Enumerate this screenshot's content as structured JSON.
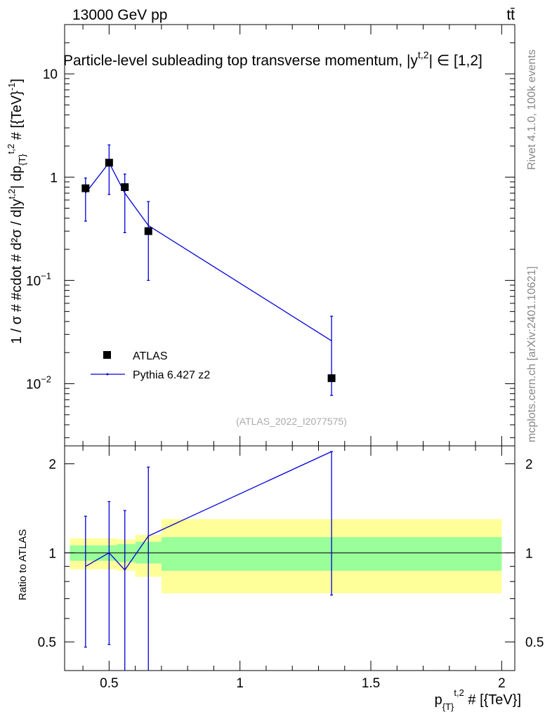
{
  "header": {
    "energy_label": "13000 GeV pp",
    "process_label": "tt̄",
    "title": "Particle-level subleading top transverse momentum, |y",
    "title_sup": "t,2",
    "title_end": "| ∈ [1,2]",
    "analysis_id": "(ATLAS_2022_I2077575)",
    "side_rivet": "Rivet 4.1.0,  100k events",
    "side_mcplots": "mcplots.cern.ch [arXiv:2401.10621]"
  },
  "colors": {
    "data": "#000000",
    "mc": "#0000dd",
    "band_inner": "#99ff99",
    "band_outer": "#ffff99"
  },
  "chart_data": [
    {
      "type": "scatter",
      "panel": "main",
      "yscale": "log",
      "ylabel": "1 / σ # #cdot # d²σ / d|yᵗ·²| dp{T}ᵗ·² # [{TeV}⁻¹]",
      "ylabel_parts": {
        "main": "1 / σ # #cdot # d²σ / d|y",
        "sup1": "t,2",
        "mid": "| dp",
        "sub": "{T}",
        "sup2": "t,2",
        "end": " # [{TeV}",
        "sup3": "-1",
        "close": "]"
      },
      "xlim": [
        0.33,
        2.05
      ],
      "ylim": [
        0.0025,
        30
      ],
      "yticks": [
        {
          "v": 0.01,
          "base": "10",
          "exp": "−2"
        },
        {
          "v": 0.1,
          "base": "10",
          "exp": "−1"
        },
        {
          "v": 1,
          "base": "1",
          "exp": ""
        },
        {
          "v": 10,
          "base": "10",
          "exp": ""
        }
      ],
      "legend_position": "lower-left",
      "series": [
        {
          "name": "ATLAS",
          "style": "markers",
          "points": [
            {
              "x": 0.41,
              "y": 0.78,
              "xerr": 0.06
            },
            {
              "x": 0.5,
              "y": 1.38,
              "xerr": 0.03
            },
            {
              "x": 0.56,
              "y": 0.8,
              "xerr": 0.04
            },
            {
              "x": 0.65,
              "y": 0.3,
              "xerr": 0.05
            },
            {
              "x": 1.35,
              "y": 0.0113,
              "xerr": 0.65
            }
          ]
        },
        {
          "name": "Pythia 6.427 z2",
          "style": "line",
          "points": [
            {
              "x": 0.41,
              "y": 0.7,
              "ylo": 0.375,
              "yhi": 0.98
            },
            {
              "x": 0.5,
              "y": 1.38,
              "ylo": 0.68,
              "yhi": 2.05
            },
            {
              "x": 0.56,
              "y": 0.7,
              "ylo": 0.29,
              "yhi": 1.07
            },
            {
              "x": 0.65,
              "y": 0.34,
              "ylo": 0.1,
              "yhi": 0.58
            },
            {
              "x": 1.35,
              "y": 0.026,
              "ylo": 0.0077,
              "yhi": 0.045
            }
          ]
        }
      ]
    },
    {
      "type": "line",
      "panel": "ratio",
      "yscale": "log",
      "ylabel": "Ratio to ATLAS",
      "xlabel": "p{T}ᵗ·² # [{TeV}]",
      "xlabel_parts": {
        "main": "p",
        "sub": "{T}",
        "sup": "t,2",
        "end": " # [{TeV}]"
      },
      "xlim": [
        0.33,
        2.05
      ],
      "ylim": [
        0.4,
        2.3
      ],
      "xticks": [
        {
          "v": 0.5,
          "label": "0.5"
        },
        {
          "v": 1,
          "label": "1"
        },
        {
          "v": 1.5,
          "label": "1.5"
        },
        {
          "v": 2,
          "label": "2"
        }
      ],
      "yticks": [
        {
          "v": 0.5,
          "label": "0.5"
        },
        {
          "v": 1,
          "label": "1"
        },
        {
          "v": 2,
          "label": "2"
        }
      ],
      "bands": [
        {
          "x0": 0.35,
          "x1": 0.47,
          "inner": [
            0.94,
            1.06
          ],
          "outer": [
            0.88,
            1.12
          ]
        },
        {
          "x0": 0.47,
          "x1": 0.53,
          "inner": [
            0.94,
            1.06
          ],
          "outer": [
            0.88,
            1.12
          ]
        },
        {
          "x0": 0.53,
          "x1": 0.6,
          "inner": [
            0.93,
            1.07
          ],
          "outer": [
            0.87,
            1.11
          ]
        },
        {
          "x0": 0.6,
          "x1": 0.7,
          "inner": [
            0.92,
            1.09
          ],
          "outer": [
            0.83,
            1.15
          ]
        },
        {
          "x0": 0.7,
          "x1": 2.0,
          "inner": [
            0.87,
            1.13
          ],
          "outer": [
            0.73,
            1.3
          ]
        }
      ],
      "series": [
        {
          "name": "Pythia 6.427 z2",
          "points": [
            {
              "x": 0.41,
              "y": 0.9,
              "ylo": 0.48,
              "yhi": 1.33
            },
            {
              "x": 0.5,
              "y": 1.0,
              "ylo": 0.49,
              "yhi": 1.49
            },
            {
              "x": 0.56,
              "y": 0.875,
              "ylo": 0.3,
              "yhi": 1.39
            },
            {
              "x": 0.65,
              "y": 1.14,
              "ylo": 0.3,
              "yhi": 1.95
            },
            {
              "x": 1.35,
              "y": 2.2,
              "ylo": 0.72,
              "yhi": 2.2
            }
          ]
        }
      ]
    }
  ]
}
